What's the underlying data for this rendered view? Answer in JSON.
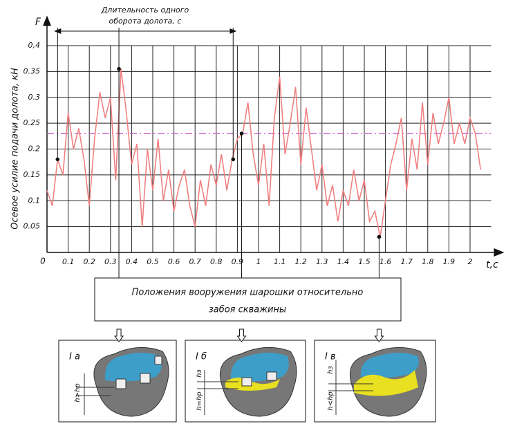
{
  "chart_data": {
    "type": "line",
    "y_label": "Осевое усилие подачи долота, кН",
    "y_axis_name": "F",
    "x_axis_name": "t,c",
    "origin_label": "0",
    "annotation": [
      "Длительность одного",
      "оборота долота, с"
    ],
    "caption": [
      "Положения вооружения шарошки относительно",
      "забоя скважины"
    ],
    "panels": [
      {
        "label": "I а",
        "h_labels": [
          "h>hр"
        ]
      },
      {
        "label": "I б",
        "h_labels": [
          "hз",
          "h=hр"
        ]
      },
      {
        "label": "I в",
        "h_labels": [
          "hз",
          "h<hр"
        ]
      }
    ],
    "xlim": [
      0,
      2.1
    ],
    "ylim": [
      0,
      0.4
    ],
    "xticks": [
      0.1,
      0.2,
      0.3,
      0.4,
      0.5,
      0.6,
      0.7,
      0.8,
      0.9,
      1.0,
      1.1,
      1.2,
      1.3,
      1.4,
      1.5,
      1.6,
      1.7,
      1.8,
      1.9,
      2.0
    ],
    "yticks": [
      0.05,
      0.1,
      0.15,
      0.2,
      0.25,
      0.3,
      0.35,
      {
        "value": 0.4,
        "label": "0,4"
      }
    ],
    "grid": true,
    "reference_line": {
      "value": 0.23,
      "color": "#cc66cc"
    },
    "series": [
      {
        "color": "#f08080",
        "x": [
          0,
          0.025,
          0.05,
          0.075,
          0.1,
          0.125,
          0.15,
          0.175,
          0.2,
          0.225,
          0.25,
          0.275,
          0.3,
          0.325,
          0.35,
          0.375,
          0.4,
          0.425,
          0.45,
          0.475,
          0.5,
          0.525,
          0.55,
          0.575,
          0.6,
          0.625,
          0.65,
          0.675,
          0.7,
          0.725,
          0.75,
          0.775,
          0.8,
          0.825,
          0.85,
          0.875,
          0.9,
          0.925,
          0.95,
          0.975,
          1.0,
          1.025,
          1.05,
          1.075,
          1.1,
          1.125,
          1.15,
          1.175,
          1.2,
          1.225,
          1.25,
          1.275,
          1.3,
          1.325,
          1.35,
          1.375,
          1.4,
          1.425,
          1.45,
          1.475,
          1.5,
          1.525,
          1.55,
          1.575,
          1.6,
          1.625,
          1.65,
          1.675,
          1.7,
          1.725,
          1.75,
          1.775,
          1.8,
          1.825,
          1.85,
          1.875,
          1.9,
          1.925,
          1.95,
          1.975,
          2.0,
          2.025,
          2.05
        ],
        "values": [
          0.12,
          0.09,
          0.18,
          0.15,
          0.27,
          0.2,
          0.24,
          0.18,
          0.09,
          0.22,
          0.31,
          0.26,
          0.3,
          0.14,
          0.355,
          0.27,
          0.17,
          0.21,
          0.05,
          0.2,
          0.12,
          0.22,
          0.1,
          0.16,
          0.08,
          0.13,
          0.16,
          0.09,
          0.05,
          0.14,
          0.09,
          0.17,
          0.13,
          0.19,
          0.12,
          0.18,
          0.22,
          0.23,
          0.29,
          0.19,
          0.13,
          0.21,
          0.09,
          0.26,
          0.34,
          0.19,
          0.25,
          0.32,
          0.17,
          0.28,
          0.2,
          0.12,
          0.17,
          0.09,
          0.13,
          0.06,
          0.12,
          0.09,
          0.16,
          0.1,
          0.14,
          0.06,
          0.08,
          0.03,
          0.1,
          0.17,
          0.21,
          0.26,
          0.12,
          0.22,
          0.16,
          0.29,
          0.17,
          0.27,
          0.21,
          0.25,
          0.3,
          0.21,
          0.25,
          0.21,
          0.26,
          0.23,
          0.16
        ]
      },
      {
        "color": "#111111",
        "x": [
          0.05,
          0.34,
          0.88,
          0.92,
          1.57
        ],
        "values": [
          0.18,
          0.355,
          0.18,
          0.23,
          0.03
        ]
      }
    ]
  }
}
